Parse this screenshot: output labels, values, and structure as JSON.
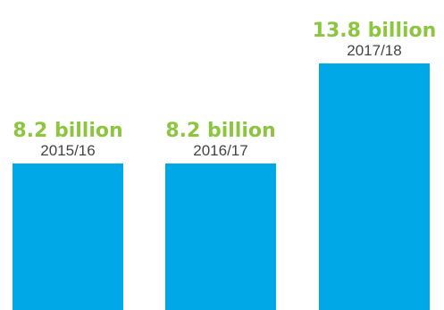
{
  "chart_data": {
    "type": "bar",
    "categories": [
      "2015/16",
      "2016/17",
      "2017/18"
    ],
    "values": [
      8.2,
      8.2,
      13.8
    ],
    "value_labels": [
      "8.2 billion",
      "8.2 billion",
      "13.8 billion"
    ],
    "ylim": [
      0,
      16
    ]
  },
  "colors": {
    "bar": "#00a8e8",
    "value_label": "#8cc63f",
    "category_label": "#444444"
  }
}
